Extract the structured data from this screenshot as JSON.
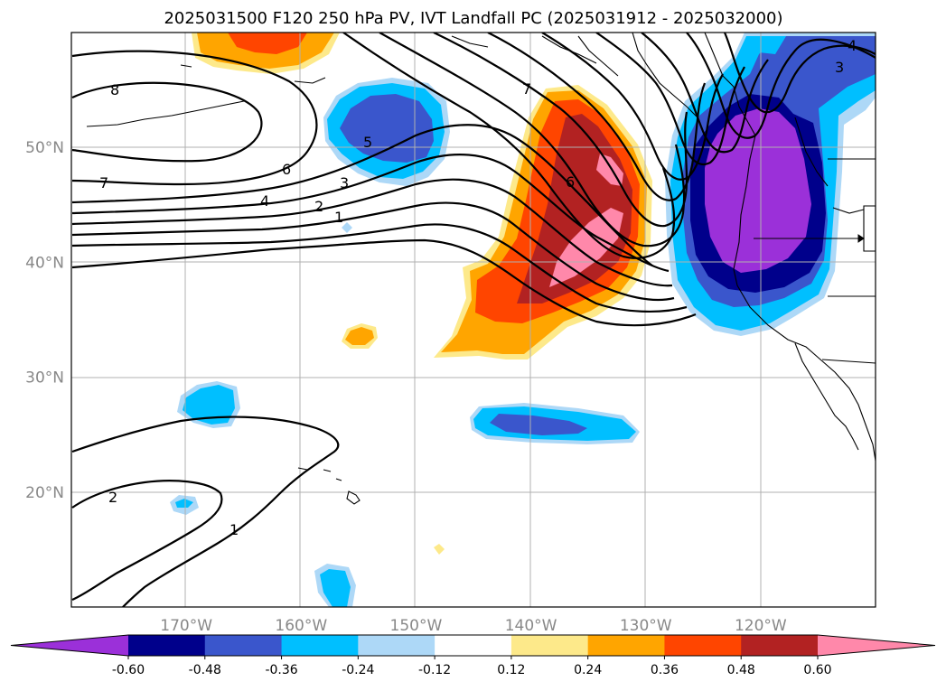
{
  "title": "2025031500 F120 250 hPa PV, IVT Landfall PC (2025031912 - 2025032000)",
  "lat_ticks": [
    {
      "lat": 50,
      "label": "50°N"
    },
    {
      "lat": 40,
      "label": "40°N"
    },
    {
      "lat": 30,
      "label": "30°N"
    },
    {
      "lat": 20,
      "label": "20°N"
    }
  ],
  "lon_ticks": [
    {
      "lon": -170,
      "label": "170°W"
    },
    {
      "lon": -160,
      "label": "160°W"
    },
    {
      "lon": -150,
      "label": "150°W"
    },
    {
      "lon": -140,
      "label": "140°W"
    },
    {
      "lon": -130,
      "label": "130°W"
    },
    {
      "lon": -120,
      "label": "120°W"
    }
  ],
  "extent": {
    "lon": [
      -180,
      -110
    ],
    "lat": [
      10,
      60
    ]
  },
  "colorbar": {
    "levels": [
      "-0.60",
      "-0.48",
      "-0.36",
      "-0.24",
      "-0.12",
      "0.12",
      "0.24",
      "0.36",
      "0.48",
      "0.60"
    ],
    "colors": [
      "#9b30d9",
      "#00008b",
      "#3a56cc",
      "#00bfff",
      "#add8f7",
      "#ffffff",
      "#fde98a",
      "#ffa500",
      "#ff4500",
      "#b22222",
      "#ff88aa"
    ]
  },
  "contour_labels": [
    "8",
    "7",
    "6",
    "5",
    "4",
    "3",
    "2",
    "1",
    "7",
    "6",
    "3",
    "4",
    "2",
    "1"
  ],
  "shading": [
    {
      "sign": "positive",
      "region": "NE Pacific trough",
      "max_class": "0.60"
    },
    {
      "sign": "negative",
      "region": "US West Coast",
      "max_class": "-0.60"
    },
    {
      "sign": "negative",
      "region": "Gulf of Alaska",
      "max_class": "-0.36"
    },
    {
      "sign": "negative",
      "region": "subtropical band near 26N",
      "max_class": "-0.36"
    },
    {
      "sign": "positive",
      "region": "North Pacific 60N",
      "max_class": "0.48"
    }
  ]
}
